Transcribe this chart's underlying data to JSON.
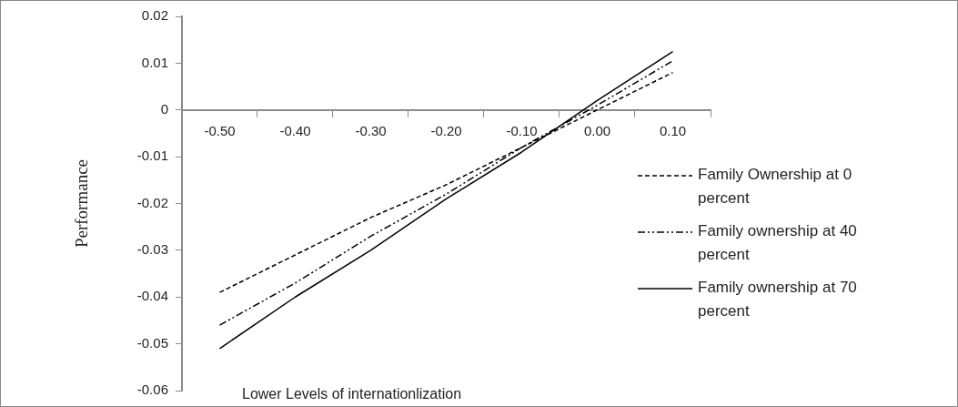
{
  "chart_data": {
    "type": "line",
    "xlabel": "Lower Levels of internationlization",
    "ylabel": "Performance",
    "categories": [
      "-0.50",
      "-0.40",
      "-0.30",
      "-0.20",
      "-0.10",
      "0.00",
      "0.10"
    ],
    "series": [
      {
        "name": "Family Ownership at 0 percent",
        "color": "#000000",
        "line_style": "dashed",
        "values": [
          -0.039,
          -0.031,
          -0.023,
          -0.016,
          -0.008,
          0.0,
          0.008
        ]
      },
      {
        "name": "Family ownership at 40 percent",
        "color": "#000000",
        "line_style": "dashdot",
        "values": [
          -0.046,
          -0.037,
          -0.027,
          -0.018,
          -0.008,
          0.001,
          0.0105
        ]
      },
      {
        "name": "Family ownership at 70 percent",
        "color": "#000000",
        "line_style": "solid",
        "values": [
          -0.051,
          -0.04,
          -0.03,
          -0.019,
          -0.009,
          0.002,
          0.0125
        ]
      }
    ],
    "ylim": [
      -0.06,
      0.02
    ],
    "yticks": [
      -0.06,
      -0.05,
      -0.04,
      -0.03,
      -0.02,
      -0.01,
      0,
      0.01,
      0.02
    ],
    "grid": false,
    "legend": "right",
    "marker": "none"
  }
}
